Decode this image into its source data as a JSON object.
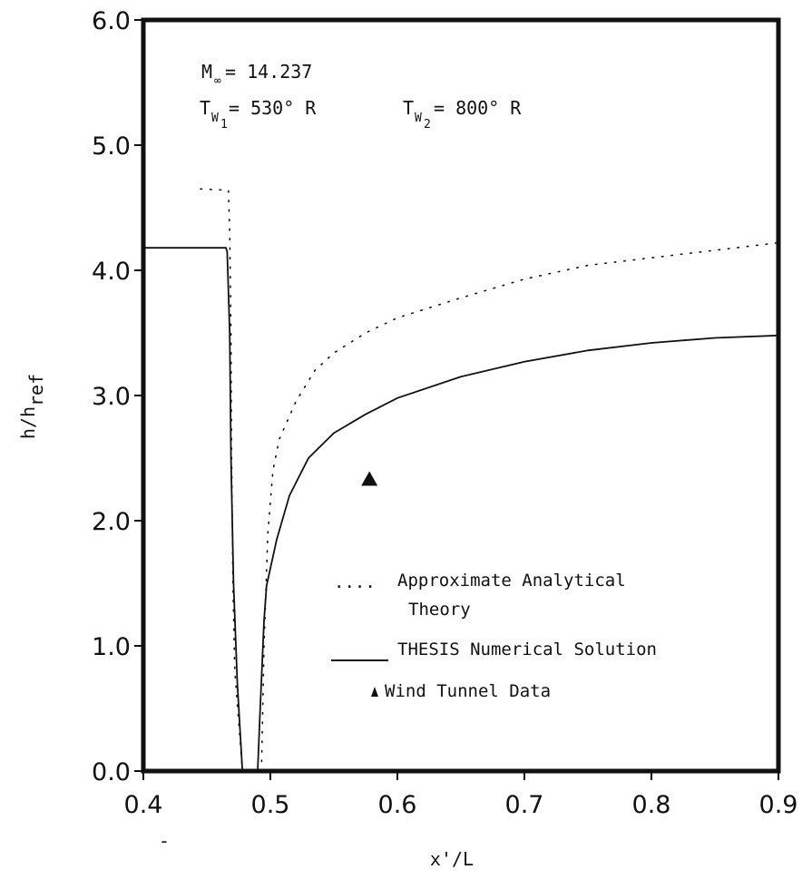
{
  "chart_data": {
    "type": "line",
    "xlabel": "x'/L",
    "ylabel": "h/h",
    "ylabel_sub": "ref",
    "xlim": [
      0.4,
      0.9
    ],
    "ylim": [
      0.0,
      6.0
    ],
    "x_ticks": [
      "0.4",
      "0.5",
      "0.6",
      "0.7",
      "0.8",
      "0.9"
    ],
    "x_tick_values": [
      0.4,
      0.5,
      0.6,
      0.7,
      0.8,
      0.9
    ],
    "y_ticks": [
      "0.0",
      "1.0",
      "2.0",
      "3.0",
      "4.0",
      "5.0",
      "6.0"
    ],
    "y_tick_values": [
      0.0,
      1.0,
      2.0,
      3.0,
      4.0,
      5.0,
      6.0
    ],
    "annotations": {
      "mach": {
        "label": "M",
        "sub": "∞",
        "value": "= 14.237"
      },
      "tw1": {
        "label": "T",
        "sub1": "W",
        "sub2": "1",
        "value": "= 530° R"
      },
      "tw2": {
        "label": "T",
        "sub1": "W",
        "sub2": "2",
        "value": "= 800° R"
      }
    },
    "legend": [
      {
        "symbol": "....",
        "label": "Approximate Analytical",
        "label2": "Theory"
      },
      {
        "symbol": "——",
        "label": "THESIS Numerical Solution"
      },
      {
        "symbol": "▲",
        "label": "Wind Tunnel Data"
      }
    ],
    "series": [
      {
        "style": "dotted",
        "segments": [
          [
            [
              0.445,
              4.65
            ],
            [
              0.467,
              4.64
            ],
            [
              0.468,
              4.3
            ],
            [
              0.469,
              3.5
            ],
            [
              0.4695,
              2.5
            ],
            [
              0.4705,
              1.5
            ],
            [
              0.472,
              0.8
            ],
            [
              0.478,
              0.0
            ]
          ],
          [
            [
              0.493,
              0.0
            ],
            [
              0.495,
              1.0
            ],
            [
              0.498,
              1.9
            ],
            [
              0.502,
              2.4
            ],
            [
              0.507,
              2.65
            ],
            [
              0.52,
              2.95
            ],
            [
              0.535,
              3.2
            ],
            [
              0.55,
              3.34
            ],
            [
              0.575,
              3.5
            ],
            [
              0.6,
              3.62
            ],
            [
              0.65,
              3.78
            ],
            [
              0.7,
              3.93
            ],
            [
              0.75,
              4.04
            ],
            [
              0.8,
              4.1
            ],
            [
              0.85,
              4.16
            ],
            [
              0.9,
              4.22
            ]
          ]
        ]
      },
      {
        "style": "solid",
        "segments": [
          [
            [
              0.4,
              4.18
            ],
            [
              0.465,
              4.18
            ],
            [
              0.466,
              4.15
            ],
            [
              0.468,
              3.5
            ],
            [
              0.469,
              2.5
            ],
            [
              0.471,
              1.5
            ],
            [
              0.474,
              0.7
            ],
            [
              0.478,
              0.0
            ]
          ],
          [
            [
              0.49,
              0.0
            ],
            [
              0.492,
              0.5
            ],
            [
              0.495,
              1.2
            ],
            [
              0.497,
              1.48
            ],
            [
              0.505,
              1.85
            ],
            [
              0.515,
              2.2
            ],
            [
              0.53,
              2.5
            ],
            [
              0.55,
              2.7
            ],
            [
              0.575,
              2.85
            ],
            [
              0.6,
              2.98
            ],
            [
              0.65,
              3.15
            ],
            [
              0.7,
              3.27
            ],
            [
              0.75,
              3.36
            ],
            [
              0.8,
              3.42
            ],
            [
              0.85,
              3.46
            ],
            [
              0.9,
              3.48
            ]
          ]
        ]
      }
    ],
    "points": [
      {
        "name": "Wind Tunnel Data",
        "x": 0.578,
        "y": 2.33
      }
    ]
  }
}
